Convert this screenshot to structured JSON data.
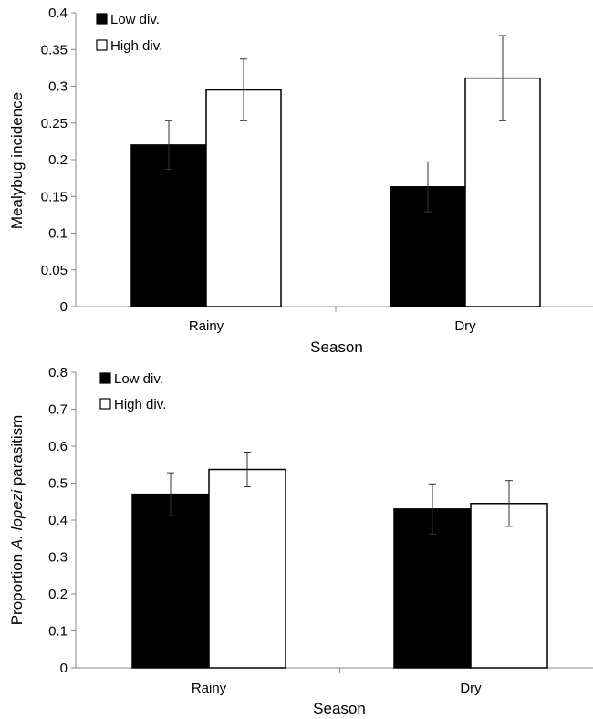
{
  "chart_data": [
    {
      "type": "bar",
      "categories": [
        "Rainy",
        "Dry"
      ],
      "series": [
        {
          "name": "Low div.",
          "values": [
            0.22,
            0.163
          ],
          "errors": [
            0.033,
            0.034
          ],
          "color": "#000000"
        },
        {
          "name": "High div.",
          "values": [
            0.295,
            0.311
          ],
          "errors": [
            0.042,
            0.058
          ],
          "color": "#ffffff"
        }
      ],
      "xlabel": "Season",
      "ylabel": "Mealybug incidence",
      "ylim": [
        0,
        0.4
      ],
      "yticks": [
        "0",
        "0.05",
        "0.1",
        "0.15",
        "0.2",
        "0.25",
        "0.3",
        "0.35",
        "0.4"
      ],
      "grid": false,
      "legend_position": "top-left"
    },
    {
      "type": "bar",
      "categories": [
        "Rainy",
        "Dry"
      ],
      "series": [
        {
          "name": "Low div.",
          "values": [
            0.47,
            0.43
          ],
          "errors": [
            0.058,
            0.068
          ],
          "color": "#000000"
        },
        {
          "name": "High div.",
          "values": [
            0.537,
            0.445
          ],
          "errors": [
            0.047,
            0.062
          ],
          "color": "#ffffff"
        }
      ],
      "xlabel": "Season",
      "ylabel_parts": [
        "Proportion ",
        "A. lopezi",
        " parasitism"
      ],
      "ylim": [
        0,
        0.8
      ],
      "yticks": [
        "0",
        "0.1",
        "0.2",
        "0.3",
        "0.4",
        "0.5",
        "0.6",
        "0.7",
        "0.8"
      ],
      "grid": false,
      "legend_position": "top-left"
    }
  ]
}
